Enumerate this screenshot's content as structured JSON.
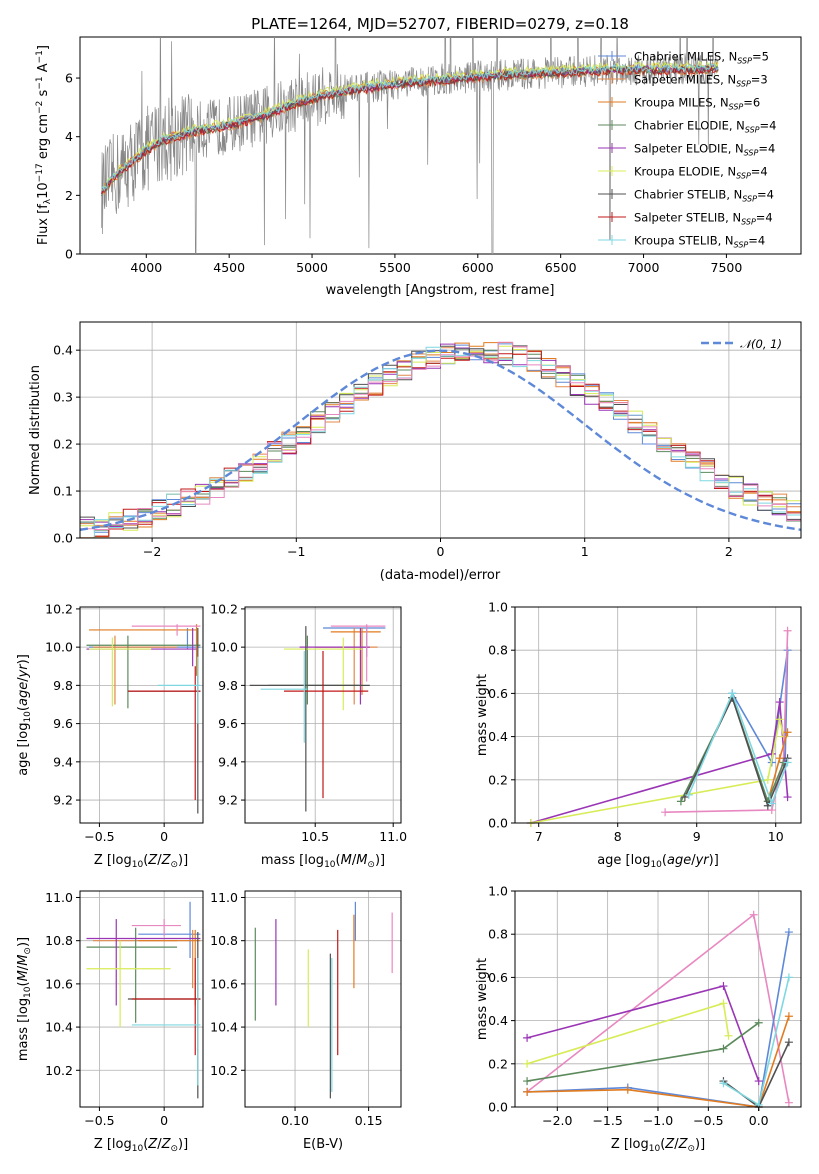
{
  "colors": {
    "chabrier_miles": "#5e88d8",
    "salpeter_miles": "#e2884a",
    "kroupa_miles": "#e07b20",
    "chabrier_elodie": "#5c8a5c",
    "salpeter_elodie": "#9a35b5",
    "kroupa_elodie": "#d8ec58",
    "chabrier_stelib": "#505050",
    "salpeter_stelib": "#c01818",
    "kroupa_stelib": "#7fd8e0",
    "pink": "#e888c0",
    "data_gray": "#888888",
    "normal_curve": "#5e88d8"
  },
  "chart_data": [
    {
      "id": "spectrum",
      "type": "line",
      "title": "PLATE=1264, MJD=52707, FIBERID=0279, z=0.18",
      "xlabel": "wavelength [Angstrom, rest frame]",
      "ylabel": "Flux [f_λ 10^-17 erg cm^-2 s^-1 A^-1]",
      "xlim": [
        3600,
        7950
      ],
      "ylim": [
        0,
        7.4
      ],
      "xticks": [
        4000,
        4500,
        5000,
        5500,
        6000,
        6500,
        7000,
        7500
      ],
      "yticks": [
        0,
        2,
        4,
        6
      ],
      "legend_position": "upper right",
      "legend": [
        "Chabrier MILES, N_SSP=5",
        "Salpeter MILES, N_SSP=3",
        "Kroupa MILES, N_SSP=6",
        "Chabrier ELODIE, N_SSP=4",
        "Salpeter ELODIE, N_SSP=4",
        "Kroupa ELODIE, N_SSP=4",
        "Chabrier STELIB, N_SSP=4",
        "Salpeter STELIB, N_SSP=4",
        "Kroupa STELIB, N_SSP=4"
      ],
      "continuum": {
        "x": [
          3730,
          3800,
          3900,
          4000,
          4100,
          4200,
          4300,
          4500,
          4700,
          4900,
          5100,
          5300,
          5500,
          5700,
          5900,
          6100,
          6300,
          6500,
          6700,
          6900,
          7100,
          7300,
          7450
        ],
        "y": [
          2.1,
          2.6,
          3.1,
          3.55,
          3.9,
          4.05,
          4.2,
          4.4,
          4.7,
          5.15,
          5.45,
          5.65,
          5.8,
          5.9,
          6.0,
          6.1,
          6.15,
          6.2,
          6.25,
          6.3,
          6.3,
          6.3,
          6.35
        ]
      }
    },
    {
      "id": "residuals",
      "type": "histogram",
      "xlabel": "(data-model)/error",
      "ylabel": "Normed distribution",
      "xlim": [
        -2.5,
        2.5
      ],
      "ylim": [
        0,
        0.46
      ],
      "xticks": [
        -2,
        -1,
        0,
        1,
        2
      ],
      "yticks": [
        0.0,
        0.1,
        0.2,
        0.3,
        0.4
      ],
      "legend": "N(0, 1)",
      "legend_position": "upper right",
      "bin_width": 0.1
    },
    {
      "id": "age_vs_Z",
      "type": "errorbar",
      "xlabel": "Z [log10(Z/Z_sun)]",
      "ylabel": "age [log10(age/yr)]",
      "xlim": [
        -0.65,
        0.3
      ],
      "ylim": [
        9.08,
        10.21
      ],
      "xticks": [
        -0.5,
        0.0
      ],
      "yticks": [
        9.2,
        9.4,
        9.6,
        9.8,
        10.0,
        10.2
      ]
    },
    {
      "id": "age_vs_mass",
      "type": "errorbar",
      "xlabel": "mass [log10(M/M_sun)]",
      "xlim": [
        10.05,
        11.05
      ],
      "ylim": [
        9.08,
        10.21
      ],
      "xticks": [
        10.5,
        11.0
      ],
      "yticks": [
        9.2,
        9.4,
        9.6,
        9.8,
        10.0,
        10.2
      ]
    },
    {
      "id": "massweight_vs_age",
      "type": "line",
      "xlabel": "age [log10(age/yr)]",
      "ylabel": "mass weight",
      "xlim": [
        6.7,
        10.32
      ],
      "ylim": [
        0,
        1.0
      ],
      "xticks": [
        7,
        8,
        9,
        10
      ],
      "yticks": [
        0.0,
        0.2,
        0.4,
        0.6,
        0.8,
        1.0
      ]
    },
    {
      "id": "mass_vs_Z",
      "type": "errorbar",
      "xlabel": "Z [log10(Z/Z_sun)]",
      "ylabel": "mass [log10(M/M_sun)]",
      "xlim": [
        -0.65,
        0.3
      ],
      "ylim": [
        10.03,
        11.03
      ],
      "xticks": [
        -0.5,
        0.0
      ],
      "yticks": [
        10.2,
        10.4,
        10.6,
        10.8,
        11.0
      ]
    },
    {
      "id": "mass_vs_ebv",
      "type": "errorbar",
      "xlabel": "E(B-V)",
      "xlim": [
        0.066,
        0.172
      ],
      "ylim": [
        10.03,
        11.03
      ],
      "xticks": [
        0.1,
        0.15
      ],
      "xticklabels": [
        "0.10",
        "0.15"
      ],
      "yticks": [
        10.2,
        10.4,
        10.6,
        10.8,
        11.0
      ]
    },
    {
      "id": "massweight_vs_Z",
      "type": "line",
      "xlabel": "Z [log10(Z/Z_sun)]",
      "ylabel": "mass weight",
      "xlim": [
        -2.42,
        0.42
      ],
      "ylim": [
        0,
        1.0
      ],
      "xticks": [
        -2.0,
        -1.5,
        -1.0,
        -0.5,
        0.0
      ],
      "yticks": [
        0.0,
        0.2,
        0.4,
        0.6,
        0.8,
        1.0
      ]
    }
  ]
}
